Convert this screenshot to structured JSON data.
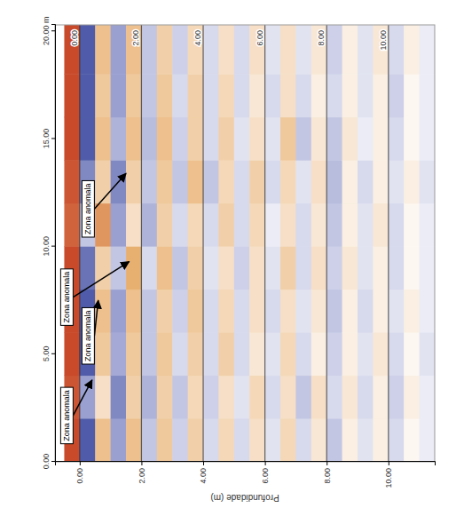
{
  "chart_data": {
    "type": "heatmap",
    "ylabel": "Profundidade (m)",
    "xlim": [
      0,
      20.3
    ],
    "xticks": [
      {
        "value": 0,
        "label": "0.00"
      },
      {
        "value": 5,
        "label": "5.00"
      },
      {
        "value": 10,
        "label": "10.00"
      },
      {
        "value": 15,
        "label": "15.00"
      },
      {
        "value": 20,
        "label": "20.00 m"
      }
    ],
    "ylim": [
      -0.8,
      11.5
    ],
    "yticks": [
      {
        "value": 0,
        "label": "0.00"
      },
      {
        "value": 2,
        "label": "2.00"
      },
      {
        "value": 4,
        "label": "4.00"
      },
      {
        "value": 6,
        "label": "6.00"
      },
      {
        "value": 8,
        "label": "8.00"
      },
      {
        "value": 10,
        "label": "10.00"
      }
    ],
    "grid": true,
    "zlim": [
      -1,
      1
    ],
    "colors": [
      "#1f2f8f",
      "#9aa0d0",
      "#ffffff",
      "#e8b070",
      "#c0301a"
    ],
    "x_edges": [
      0,
      2,
      4,
      6,
      8,
      10,
      12,
      14,
      16,
      18,
      20.3
    ],
    "y_edges": [
      -0.5,
      0,
      0.5,
      1,
      1.5,
      2,
      2.5,
      3,
      3.5,
      4,
      4.5,
      5,
      5.5,
      6,
      6.5,
      7,
      7.5,
      8,
      8.5,
      9,
      9.5,
      10,
      10.5,
      11,
      11.5
    ],
    "values": [
      [
        0.9,
        0.85,
        0.9,
        0.9,
        0.9,
        0.8,
        0.85,
        0.9,
        0.9,
        0.9
      ],
      [
        -0.8,
        -0.5,
        -0.8,
        -0.8,
        -0.7,
        -0.3,
        -0.6,
        -0.8,
        -0.8,
        -0.8
      ],
      [
        0.4,
        0.2,
        0.35,
        0.4,
        0.3,
        0.6,
        0.3,
        0.4,
        0.35,
        0.4
      ],
      [
        -0.5,
        -0.6,
        -0.45,
        -0.5,
        -0.3,
        -0.5,
        -0.6,
        -0.4,
        -0.5,
        -0.5
      ],
      [
        0.4,
        0.3,
        0.35,
        0.4,
        0.5,
        0.2,
        0.3,
        0.4,
        0.35,
        0.4
      ],
      [
        -0.3,
        -0.4,
        -0.3,
        -0.3,
        -0.2,
        -0.4,
        -0.3,
        -0.35,
        -0.3,
        -0.3
      ],
      [
        0.35,
        0.3,
        0.35,
        0.3,
        0.4,
        0.3,
        0.35,
        0.4,
        0.35,
        0.3
      ],
      [
        -0.25,
        -0.3,
        -0.2,
        -0.25,
        -0.3,
        -0.2,
        -0.3,
        -0.25,
        -0.2,
        -0.25
      ],
      [
        0.3,
        0.25,
        0.3,
        0.35,
        0.3,
        0.25,
        0.4,
        0.3,
        0.3,
        0.25
      ],
      [
        -0.2,
        -0.25,
        -0.2,
        -0.2,
        -0.15,
        -0.2,
        -0.3,
        -0.2,
        -0.2,
        -0.2
      ],
      [
        0.25,
        0.2,
        0.3,
        0.25,
        0.2,
        0.3,
        0.25,
        0.3,
        0.25,
        0.2
      ],
      [
        -0.2,
        -0.15,
        -0.2,
        -0.2,
        -0.25,
        -0.2,
        -0.2,
        -0.15,
        -0.2,
        -0.2
      ],
      [
        0.2,
        0.25,
        0.15,
        0.2,
        0.2,
        0.25,
        0.3,
        0.2,
        0.15,
        0.2
      ],
      [
        -0.15,
        -0.2,
        -0.15,
        -0.2,
        -0.15,
        -0.1,
        -0.2,
        -0.15,
        -0.2,
        -0.15
      ],
      [
        0.25,
        0.2,
        0.25,
        0.2,
        0.3,
        0.2,
        0.25,
        0.35,
        0.2,
        0.2
      ],
      [
        -0.2,
        -0.3,
        -0.2,
        -0.15,
        -0.2,
        -0.2,
        -0.15,
        -0.3,
        -0.2,
        -0.15
      ],
      [
        0.15,
        0.2,
        0.1,
        0.15,
        0.2,
        0.15,
        0.2,
        0.15,
        0.1,
        0.15
      ],
      [
        -0.3,
        -0.2,
        -0.25,
        -0.3,
        -0.25,
        -0.3,
        -0.35,
        -0.3,
        -0.2,
        -0.25
      ],
      [
        0.1,
        0.15,
        0.1,
        0.1,
        0.15,
        0.1,
        0.1,
        0.15,
        0.1,
        0.1
      ],
      [
        -0.15,
        -0.2,
        -0.15,
        -0.2,
        -0.15,
        -0.15,
        -0.2,
        -0.1,
        -0.15,
        -0.15
      ],
      [
        0.1,
        0.1,
        0.15,
        0.1,
        0.1,
        0.15,
        0.1,
        0.1,
        0.1,
        0.15
      ],
      [
        -0.2,
        -0.25,
        -0.2,
        -0.15,
        -0.2,
        -0.2,
        -0.15,
        -0.2,
        -0.25,
        -0.2
      ],
      [
        0.05,
        0.1,
        0.05,
        0.1,
        0.05,
        0.05,
        0.1,
        0.05,
        0.05,
        0.1
      ],
      [
        -0.1,
        -0.1,
        -0.15,
        -0.1,
        -0.1,
        -0.1,
        -0.15,
        -0.1,
        -0.1,
        -0.1
      ]
    ],
    "annotations": [
      {
        "text": "Zona anomala",
        "x": 3.8,
        "y": 0.4
      },
      {
        "text": "Zona anomala",
        "x": 7.5,
        "y": 0.6
      },
      {
        "text": "Zona anomala",
        "x": 9.3,
        "y": 1.6
      },
      {
        "text": "Zona anomala",
        "x": 13.4,
        "y": 1.5
      }
    ]
  }
}
